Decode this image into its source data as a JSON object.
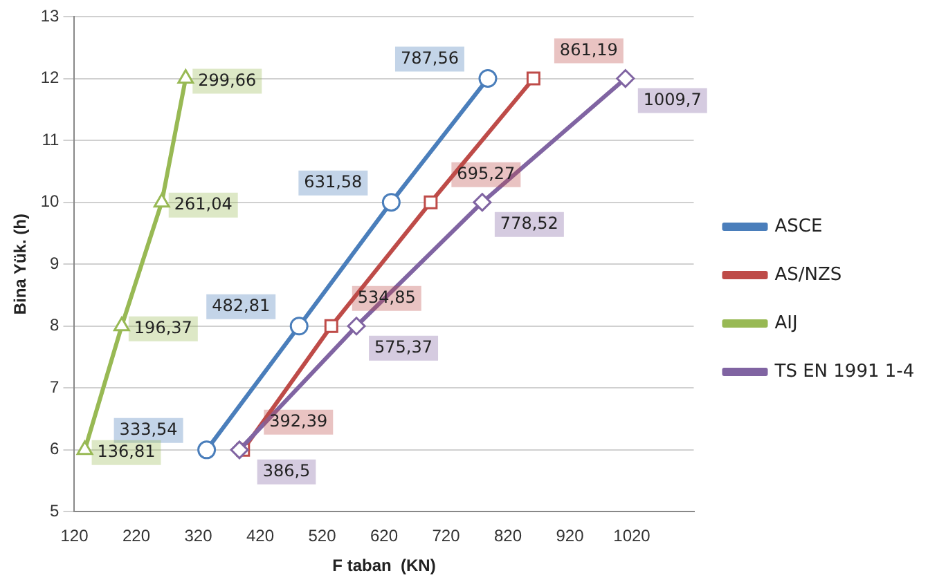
{
  "chart_data": {
    "type": "line",
    "xlabel": "F taban  (KN)",
    "ylabel": "Bina Yük. (h)",
    "xlim": [
      120,
      1120
    ],
    "xticks": [
      120,
      220,
      320,
      420,
      520,
      620,
      720,
      820,
      920,
      1020
    ],
    "ylim": [
      5,
      13
    ],
    "yticks": [
      5,
      6,
      7,
      8,
      9,
      10,
      11,
      12,
      13
    ],
    "grid": "y",
    "legend": "right",
    "series": [
      {
        "name": "ASCE",
        "color": "#4a7ebb",
        "marker": "circle",
        "x": [
          333.54,
          482.81,
          631.58,
          787.56
        ],
        "values": [
          6,
          8,
          10,
          12
        ]
      },
      {
        "name": "AS/NZS",
        "color": "#be4b48",
        "marker": "square",
        "x": [
          392.39,
          534.85,
          695.27,
          861.19
        ],
        "values": [
          6,
          8,
          10,
          12
        ]
      },
      {
        "name": "AIJ",
        "color": "#98b954",
        "marker": "triangle",
        "x": [
          136.81,
          196.37,
          261.04,
          299.66
        ],
        "values": [
          6,
          8,
          10,
          12
        ]
      },
      {
        "name": "TS EN 1991 1-4",
        "color": "#8064a2",
        "marker": "diamond",
        "x": [
          386.5,
          575.37,
          778.52,
          1009.7
        ],
        "values": [
          6,
          8,
          10,
          12
        ]
      }
    ],
    "annotations": [
      {
        "text": "333,54",
        "x": 333.54,
        "y": 6
      },
      {
        "text": "482,81",
        "x": 482.81,
        "y": 8
      },
      {
        "text": "631,58",
        "x": 631.58,
        "y": 10
      },
      {
        "text": "787,56",
        "x": 787.56,
        "y": 12
      },
      {
        "text": "392,39",
        "x": 392.39,
        "y": 6
      },
      {
        "text": "534,85",
        "x": 534.85,
        "y": 8
      },
      {
        "text": "695,27",
        "x": 695.27,
        "y": 10
      },
      {
        "text": "861,19",
        "x": 861.19,
        "y": 12
      },
      {
        "text": "136,81",
        "x": 136.81,
        "y": 6
      },
      {
        "text": "196,37",
        "x": 196.37,
        "y": 8
      },
      {
        "text": "261,04",
        "x": 261.04,
        "y": 10
      },
      {
        "text": "299,66",
        "x": 299.66,
        "y": 12
      },
      {
        "text": "386,5",
        "x": 386.5,
        "y": 6
      },
      {
        "text": "575,37",
        "x": 575.37,
        "y": 8
      },
      {
        "text": "778,52",
        "x": 778.52,
        "y": 10
      },
      {
        "text": "1009,7",
        "x": 1009.7,
        "y": 12
      }
    ]
  }
}
